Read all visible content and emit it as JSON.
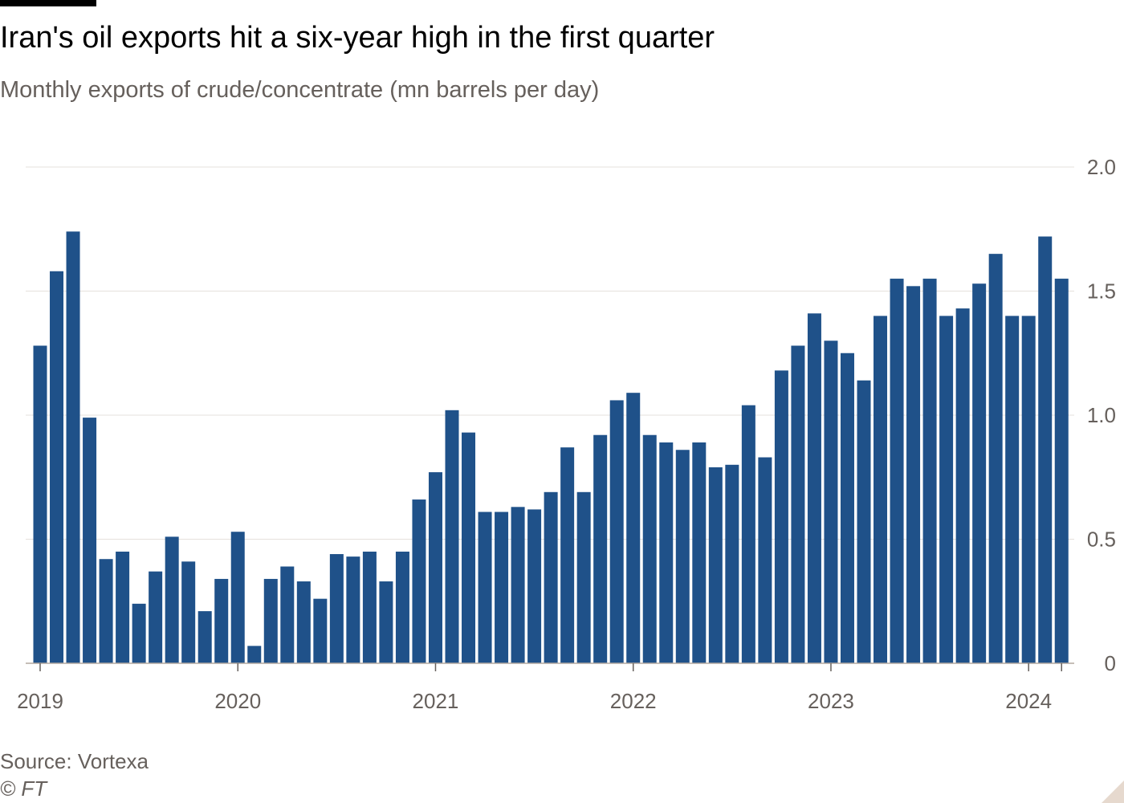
{
  "header": {
    "title": "Iran's oil exports hit a six-year high in the first quarter",
    "subtitle": "Monthly exports of crude/concentrate (mn barrels per day)"
  },
  "footer": {
    "source": "Source: Vortexa",
    "copyright": "© FT"
  },
  "colors": {
    "bar": "#1f5189",
    "grid": "#e6e1dc",
    "text": "#66605c"
  },
  "chart_data": {
    "type": "bar",
    "title": "Iran's oil exports hit a six-year high in the first quarter",
    "subtitle": "Monthly exports of crude/concentrate (mn barrels per day)",
    "xlabel": "",
    "ylabel": "",
    "ylim": [
      0,
      2.0
    ],
    "yticks": [
      "0",
      "0.5",
      "1.0",
      "1.5",
      "2.0"
    ],
    "xticks": [
      "2019",
      "2020",
      "2021",
      "2022",
      "2023",
      "2024"
    ],
    "grid": true,
    "y_axis_position": "right",
    "start": "2019-01",
    "categories": [
      "2019-01",
      "2019-02",
      "2019-03",
      "2019-04",
      "2019-05",
      "2019-06",
      "2019-07",
      "2019-08",
      "2019-09",
      "2019-10",
      "2019-11",
      "2019-12",
      "2020-01",
      "2020-02",
      "2020-03",
      "2020-04",
      "2020-05",
      "2020-06",
      "2020-07",
      "2020-08",
      "2020-09",
      "2020-10",
      "2020-11",
      "2020-12",
      "2021-01",
      "2021-02",
      "2021-03",
      "2021-04",
      "2021-05",
      "2021-06",
      "2021-07",
      "2021-08",
      "2021-09",
      "2021-10",
      "2021-11",
      "2021-12",
      "2022-01",
      "2022-02",
      "2022-03",
      "2022-04",
      "2022-05",
      "2022-06",
      "2022-07",
      "2022-08",
      "2022-09",
      "2022-10",
      "2022-11",
      "2022-12",
      "2023-01",
      "2023-02",
      "2023-03",
      "2023-04",
      "2023-05",
      "2023-06",
      "2023-07",
      "2023-08",
      "2023-09",
      "2023-10",
      "2023-11",
      "2023-12",
      "2024-01",
      "2024-02",
      "2024-03"
    ],
    "values": [
      1.28,
      1.58,
      1.74,
      0.99,
      0.42,
      0.45,
      0.24,
      0.37,
      0.51,
      0.41,
      0.21,
      0.34,
      0.53,
      0.07,
      0.34,
      0.39,
      0.33,
      0.26,
      0.44,
      0.43,
      0.45,
      0.33,
      0.45,
      0.66,
      0.77,
      1.02,
      0.93,
      0.61,
      0.61,
      0.63,
      0.62,
      0.69,
      0.87,
      0.69,
      0.92,
      1.06,
      1.09,
      0.92,
      0.89,
      0.86,
      0.89,
      0.79,
      0.8,
      1.04,
      0.83,
      1.18,
      1.28,
      1.41,
      1.3,
      1.25,
      1.14,
      1.4,
      1.55,
      1.52,
      1.55,
      1.4,
      1.43,
      1.53,
      1.65,
      1.4,
      1.4,
      1.72,
      1.55
    ]
  }
}
